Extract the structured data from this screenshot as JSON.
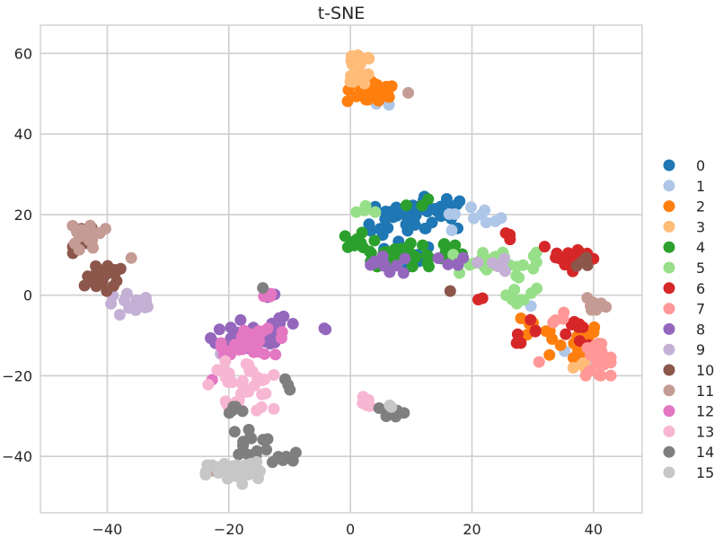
{
  "chart_data": {
    "type": "scatter",
    "title": "t-SNE",
    "xlabel": "",
    "ylabel": "",
    "xlim": [
      -51,
      48
    ],
    "ylim": [
      -54,
      67
    ],
    "xticks": [
      -40,
      -20,
      0,
      20,
      40
    ],
    "yticks": [
      -40,
      -20,
      0,
      20,
      40,
      60
    ],
    "grid": true,
    "legend_position": "right",
    "series": [
      {
        "name": "0",
        "color": "#1f77b4",
        "clusters": [
          {
            "cx": 13.5,
            "cy": 20.5,
            "sx": 3.6,
            "sy": 2.2,
            "n": 38
          },
          {
            "cx": 6.5,
            "cy": 18.0,
            "sx": 2.0,
            "sy": 2.6,
            "n": 14
          },
          {
            "cx": 9.5,
            "cy": 9.5,
            "sx": 2.2,
            "sy": 1.6,
            "n": 8
          }
        ]
      },
      {
        "name": "1",
        "color": "#aec7e8",
        "clusters": [
          {
            "cx": 19.5,
            "cy": 18.5,
            "sx": 3.0,
            "sy": 2.0,
            "n": 10
          },
          {
            "cx": 5.0,
            "cy": 48.0,
            "sx": 1.2,
            "sy": 0.8,
            "n": 3
          },
          {
            "cx": 37.5,
            "cy": -13.5,
            "sx": 2.0,
            "sy": 2.5,
            "n": 5
          },
          {
            "cx": 27.0,
            "cy": -2.0,
            "sx": 1.5,
            "sy": 1.2,
            "n": 3
          }
        ]
      },
      {
        "name": "2",
        "color": "#ff7f0e",
        "clusters": [
          {
            "cx": 3.5,
            "cy": 50.5,
            "sx": 2.2,
            "sy": 1.6,
            "n": 30
          },
          {
            "cx": 36.5,
            "cy": -11.5,
            "sx": 2.4,
            "sy": 2.4,
            "n": 24
          },
          {
            "cx": 28.5,
            "cy": -8.0,
            "sx": 1.2,
            "sy": 2.0,
            "n": 4
          }
        ]
      },
      {
        "name": "3",
        "color": "#ffbb78",
        "clusters": [
          {
            "cx": 1.5,
            "cy": 58.5,
            "sx": 1.3,
            "sy": 1.0,
            "n": 14
          },
          {
            "cx": 2.5,
            "cy": 54.0,
            "sx": 1.4,
            "sy": 1.2,
            "n": 8
          },
          {
            "cx": 38.0,
            "cy": -17.0,
            "sx": 1.2,
            "sy": 0.8,
            "n": 4
          }
        ]
      },
      {
        "name": "4",
        "color": "#2ca02c",
        "clusters": [
          {
            "cx": 7.5,
            "cy": 10.0,
            "sx": 3.0,
            "sy": 1.6,
            "n": 34
          },
          {
            "cx": 2.0,
            "cy": 13.0,
            "sx": 1.6,
            "sy": 1.4,
            "n": 10
          },
          {
            "cx": 15.5,
            "cy": 11.0,
            "sx": 1.6,
            "sy": 2.0,
            "n": 8
          },
          {
            "cx": 11.0,
            "cy": 23.0,
            "sx": 1.0,
            "sy": 1.0,
            "n": 3
          }
        ]
      },
      {
        "name": "5",
        "color": "#98df8a",
        "clusters": [
          {
            "cx": 24.5,
            "cy": 8.5,
            "sx": 3.4,
            "sy": 1.2,
            "n": 26
          },
          {
            "cx": 28.0,
            "cy": 1.0,
            "sx": 1.6,
            "sy": 2.2,
            "n": 10
          },
          {
            "cx": 3.5,
            "cy": 21.0,
            "sx": 1.4,
            "sy": 1.0,
            "n": 4
          },
          {
            "cx": 20.0,
            "cy": 8.0,
            "sx": 2.0,
            "sy": 1.4,
            "n": 6
          }
        ]
      },
      {
        "name": "6",
        "color": "#d62728",
        "clusters": [
          {
            "cx": 36.5,
            "cy": 9.5,
            "sx": 2.6,
            "sy": 2.0,
            "n": 18
          },
          {
            "cx": 28.5,
            "cy": -9.0,
            "sx": 1.2,
            "sy": 1.6,
            "n": 6
          },
          {
            "cx": 38.0,
            "cy": -9.5,
            "sx": 1.8,
            "sy": 1.6,
            "n": 8
          },
          {
            "cx": 25.5,
            "cy": 15.0,
            "sx": 0.8,
            "sy": 0.8,
            "n": 3
          },
          {
            "cx": 22.0,
            "cy": -1.0,
            "sx": 0.6,
            "sy": 0.4,
            "n": 2
          }
        ]
      },
      {
        "name": "7",
        "color": "#ff9896",
        "clusters": [
          {
            "cx": 40.5,
            "cy": -16.0,
            "sx": 1.3,
            "sy": 2.2,
            "n": 26
          },
          {
            "cx": 35.5,
            "cy": -5.0,
            "sx": 1.2,
            "sy": 1.0,
            "n": 4
          },
          {
            "cx": 30.5,
            "cy": -16.5,
            "sx": 0.5,
            "sy": 0.3,
            "n": 1
          }
        ]
      },
      {
        "name": "8",
        "color": "#9467bd",
        "clusters": [
          {
            "cx": -16.5,
            "cy": -10.5,
            "sx": 3.6,
            "sy": 2.4,
            "n": 34
          },
          {
            "cx": -11.0,
            "cy": -6.5,
            "sx": 1.6,
            "sy": 1.0,
            "n": 6
          },
          {
            "cx": 6.0,
            "cy": 7.5,
            "sx": 3.0,
            "sy": 1.2,
            "n": 10
          },
          {
            "cx": 16.0,
            "cy": 8.0,
            "sx": 1.6,
            "sy": 0.8,
            "n": 5
          },
          {
            "cx": -13.5,
            "cy": 0.0,
            "sx": 1.2,
            "sy": 0.6,
            "n": 4
          },
          {
            "cx": -5.0,
            "cy": -9.0,
            "sx": 0.6,
            "sy": 0.6,
            "n": 2
          }
        ]
      },
      {
        "name": "9",
        "color": "#c5b0d5",
        "clusters": [
          {
            "cx": -35.5,
            "cy": -2.5,
            "sx": 2.6,
            "sy": 1.6,
            "n": 14
          },
          {
            "cx": 22.5,
            "cy": 7.5,
            "sx": 2.0,
            "sy": 1.0,
            "n": 6
          },
          {
            "cx": -21.0,
            "cy": -16.0,
            "sx": 0.8,
            "sy": 0.8,
            "n": 2
          }
        ]
      },
      {
        "name": "10",
        "color": "#8c564b",
        "clusters": [
          {
            "cx": -40.5,
            "cy": 4.0,
            "sx": 1.8,
            "sy": 1.8,
            "n": 20
          },
          {
            "cx": -43.5,
            "cy": 14.0,
            "sx": 1.2,
            "sy": 2.0,
            "n": 8
          },
          {
            "cx": 38.5,
            "cy": 8.0,
            "sx": 1.4,
            "sy": 1.0,
            "n": 4
          },
          {
            "cx": 16.5,
            "cy": 1.0,
            "sx": 0.4,
            "sy": 0.4,
            "n": 1
          }
        ]
      },
      {
        "name": "11",
        "color": "#c49c94",
        "clusters": [
          {
            "cx": -43.0,
            "cy": 15.0,
            "sx": 1.5,
            "sy": 2.2,
            "n": 18
          },
          {
            "cx": -36.5,
            "cy": 8.5,
            "sx": 0.4,
            "sy": 0.4,
            "n": 1
          },
          {
            "cx": 40.5,
            "cy": -2.0,
            "sx": 1.0,
            "sy": 1.2,
            "n": 8
          },
          {
            "cx": 9.5,
            "cy": 50.0,
            "sx": 0.4,
            "sy": 0.4,
            "n": 1
          },
          {
            "cx": -23.0,
            "cy": -43.5,
            "sx": 0.4,
            "sy": 0.4,
            "n": 1
          }
        ]
      },
      {
        "name": "12",
        "color": "#e377c2",
        "clusters": [
          {
            "cx": -15.5,
            "cy": -11.5,
            "sx": 3.2,
            "sy": 1.8,
            "n": 30
          },
          {
            "cx": -14.5,
            "cy": 0.0,
            "sx": 1.0,
            "sy": 0.6,
            "n": 3
          },
          {
            "cx": -23.0,
            "cy": -21.0,
            "sx": 0.4,
            "sy": 0.4,
            "n": 1
          }
        ]
      },
      {
        "name": "13",
        "color": "#f7b6d2",
        "clusters": [
          {
            "cx": -18.0,
            "cy": -22.5,
            "sx": 3.0,
            "sy": 3.4,
            "n": 34
          },
          {
            "cx": 2.5,
            "cy": -27.0,
            "sx": 0.8,
            "sy": 1.2,
            "n": 5
          }
        ]
      },
      {
        "name": "14",
        "color": "#7f7f7f",
        "clusters": [
          {
            "cx": -16.5,
            "cy": -36.5,
            "sx": 1.6,
            "sy": 1.8,
            "n": 14
          },
          {
            "cx": -11.5,
            "cy": -40.5,
            "sx": 1.4,
            "sy": 0.8,
            "n": 6
          },
          {
            "cx": 6.5,
            "cy": -29.0,
            "sx": 1.8,
            "sy": 1.0,
            "n": 10
          },
          {
            "cx": -19.5,
            "cy": -29.0,
            "sx": 1.2,
            "sy": 0.8,
            "n": 5
          },
          {
            "cx": -10.5,
            "cy": -23.0,
            "sx": 0.6,
            "sy": 1.4,
            "n": 3
          },
          {
            "cx": -14.5,
            "cy": 1.5,
            "sx": 0.3,
            "sy": 0.3,
            "n": 1
          }
        ]
      },
      {
        "name": "15",
        "color": "#c7c7c7",
        "clusters": [
          {
            "cx": -19.5,
            "cy": -44.0,
            "sx": 2.4,
            "sy": 1.6,
            "n": 34
          },
          {
            "cx": -16.0,
            "cy": -43.0,
            "sx": 1.4,
            "sy": 1.2,
            "n": 8
          },
          {
            "cx": 6.5,
            "cy": -27.5,
            "sx": 0.6,
            "sy": 0.4,
            "n": 2
          }
        ]
      }
    ]
  }
}
